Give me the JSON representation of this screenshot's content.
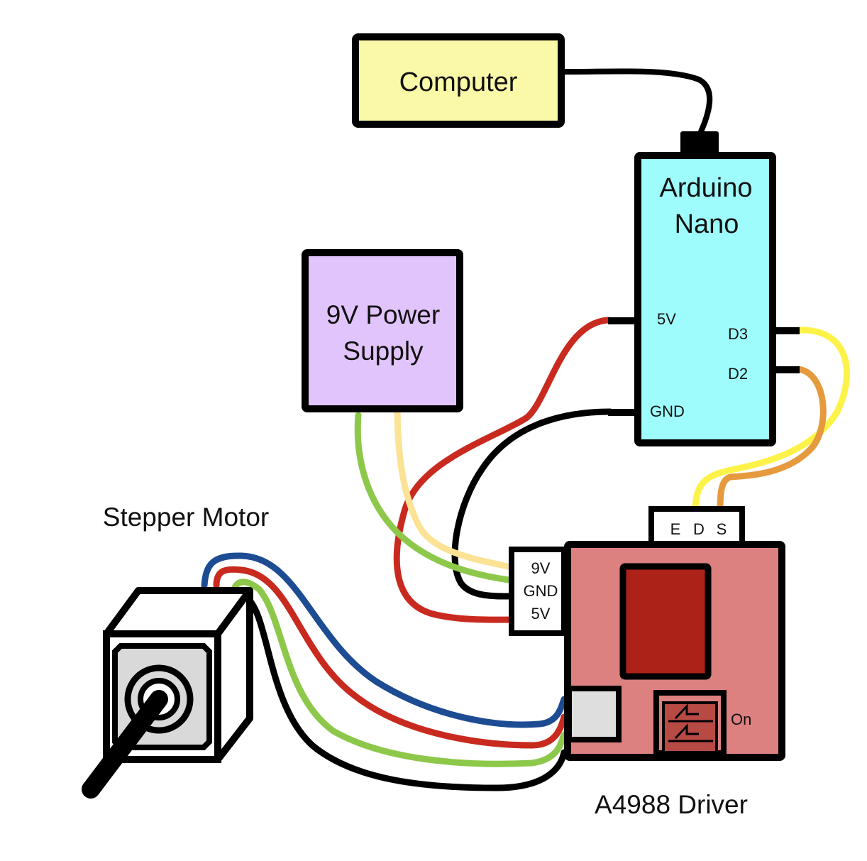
{
  "computer": {
    "label": "Computer",
    "fill": "#faf9a8"
  },
  "arduino": {
    "title_line1": "Arduino",
    "title_line2": "Nano",
    "fill": "#9ffcfc",
    "pins": {
      "v5": "5V",
      "gnd": "GND",
      "d3": "D3",
      "d2": "D2"
    }
  },
  "power_supply": {
    "title_line1": "9V Power",
    "title_line2": "Supply",
    "fill": "#e1c4fb"
  },
  "driver": {
    "label": "A4988 Driver",
    "fill": "#dc8080",
    "chip_fill": "#ad2218",
    "eds_labels": {
      "e": "E",
      "d": "D",
      "s": "S"
    },
    "power_labels": {
      "v9": "9V",
      "gnd": "GND",
      "v5": "5V"
    },
    "switch_label": "On"
  },
  "stepper_motor": {
    "label": "Stepper Motor",
    "fill": "#d9d9d9"
  },
  "wire_colors": {
    "red": "#c92a1f",
    "black": "#000000",
    "yellow": "#fdf348",
    "orange": "#e69a3e",
    "green": "#8dc84a",
    "light_yellow": "#fbe294",
    "blue": "#1d4c93"
  }
}
